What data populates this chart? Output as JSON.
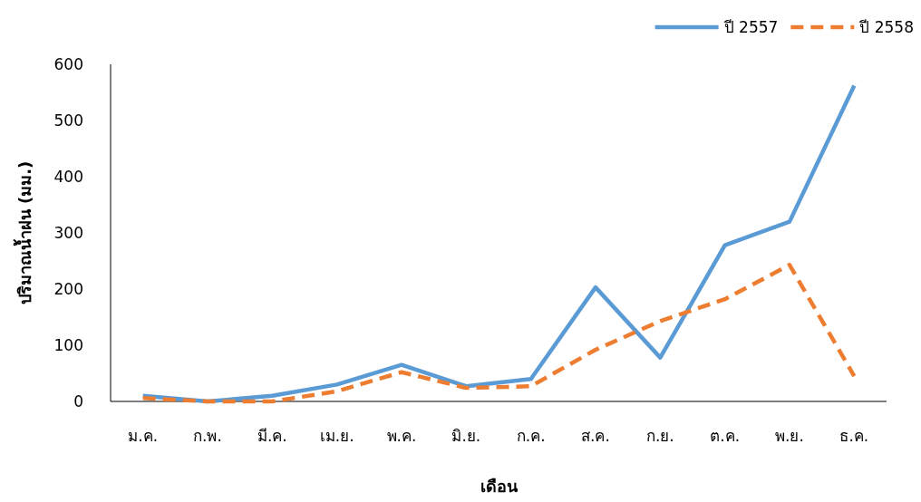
{
  "chart_data": {
    "type": "line",
    "xlabel": "เดือน",
    "ylabel": "ปริมาณน้ำฝน (มม.)",
    "categories": [
      "ม.ค.",
      "ก.พ.",
      "มี.ค.",
      "เม.ย.",
      "พ.ค.",
      "มิ.ย.",
      "ก.ค.",
      "ส.ค.",
      "ก.ย.",
      "ต.ค.",
      "พ.ย.",
      "ธ.ค."
    ],
    "series": [
      {
        "name": "ปี 2557",
        "color": "#5b9bd5",
        "line_style": "solid",
        "values": [
          10,
          0,
          10,
          30,
          65,
          27,
          40,
          203,
          78,
          278,
          320,
          562
        ]
      },
      {
        "name": "ปี 2558",
        "color": "#ed7d31",
        "line_style": "dashed",
        "values": [
          6,
          0,
          0,
          18,
          52,
          24,
          27,
          92,
          143,
          182,
          243,
          45
        ]
      }
    ],
    "ylim": [
      0,
      600
    ],
    "yticks": [
      0,
      100,
      200,
      300,
      400,
      500,
      600
    ],
    "grid": false,
    "legend": "top right"
  }
}
